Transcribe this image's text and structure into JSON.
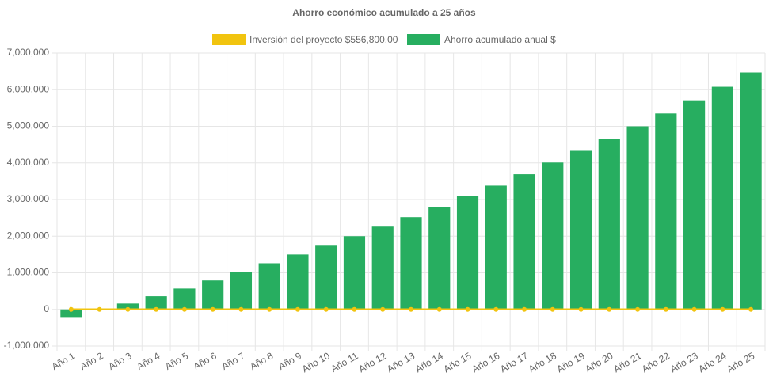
{
  "chart_data": {
    "type": "bar",
    "title": "Ahorro económico acumulado a 25 años",
    "categories": [
      "Año 1",
      "Año 2",
      "Año 3",
      "Año 4",
      "Año 5",
      "Año 6",
      "Año 7",
      "Año 8",
      "Año 9",
      "Año 10",
      "Año 11",
      "Año 12",
      "Año 13",
      "Año 14",
      "Año 15",
      "Año 16",
      "Año 17",
      "Año 18",
      "Año 19",
      "Año 20",
      "Año 21",
      "Año 22",
      "Año 23",
      "Año 24",
      "Año 25"
    ],
    "series": [
      {
        "name": "Inversión del proyecto $556,800.00",
        "type": "line",
        "color": "#f1c40f",
        "values": [
          0,
          0,
          0,
          0,
          0,
          0,
          0,
          0,
          0,
          0,
          0,
          0,
          0,
          0,
          0,
          0,
          0,
          0,
          0,
          0,
          0,
          0,
          0,
          0,
          0
        ]
      },
      {
        "name": "Ahorro acumulado anual $",
        "type": "bar",
        "color": "#27ae60",
        "values": [
          -230000,
          0,
          160000,
          360000,
          570000,
          790000,
          1030000,
          1260000,
          1500000,
          1740000,
          2000000,
          2260000,
          2520000,
          2800000,
          3100000,
          3380000,
          3690000,
          4010000,
          4330000,
          4660000,
          5000000,
          5350000,
          5710000,
          6080000,
          6470000
        ]
      }
    ],
    "ylim": [
      -1000000,
      7000000
    ],
    "yticks": [
      {
        "value": -1000000,
        "label": "-1,000,000"
      },
      0,
      {
        "value": 1000000,
        "label": "1,000,000"
      },
      {
        "value": 2000000,
        "label": "2,000,000"
      },
      {
        "value": 3000000,
        "label": "3,000,000"
      },
      {
        "value": 4000000,
        "label": "4,000,000"
      },
      {
        "value": 5000000,
        "label": "5,000,000"
      },
      {
        "value": 6000000,
        "label": "6,000,000"
      },
      {
        "value": 7000000,
        "label": "7,000,000"
      }
    ],
    "grid": true
  }
}
